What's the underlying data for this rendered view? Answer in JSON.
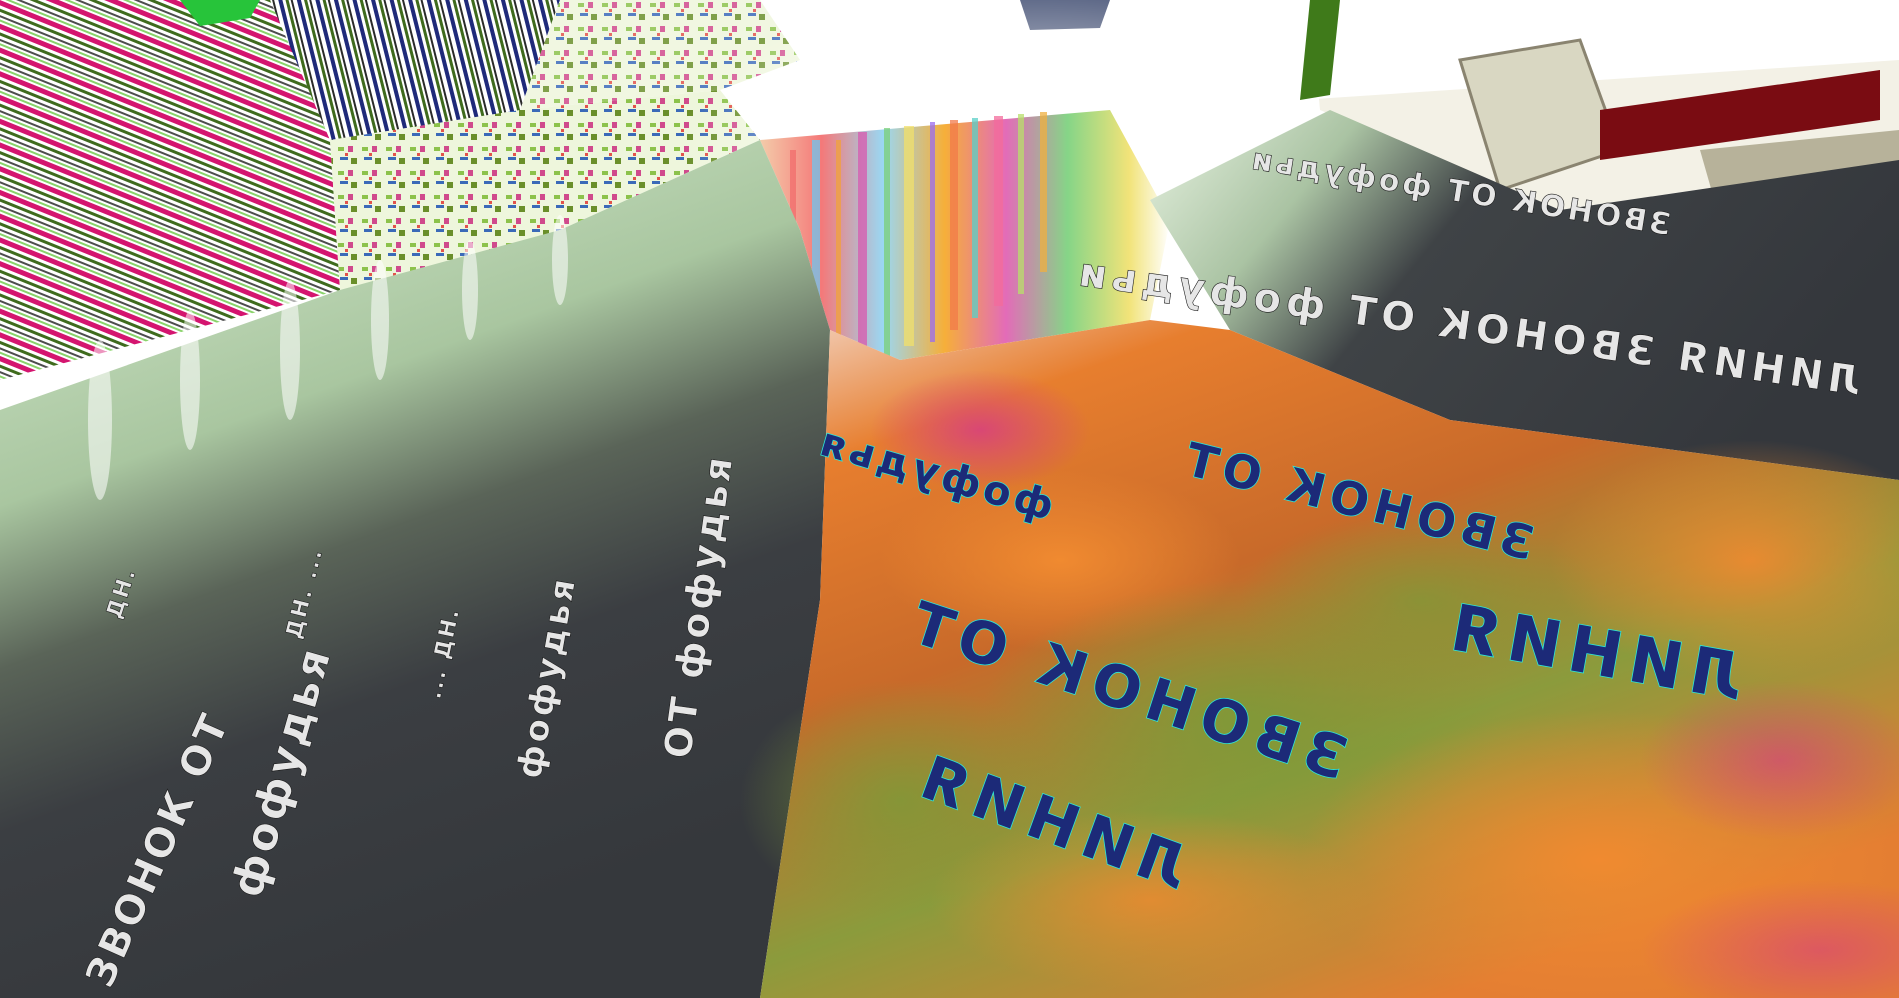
{
  "scene": {
    "palette": {
      "left_wall_light": "#cfe6c4",
      "left_wall_mid": "#9fbe95",
      "left_wall_dark": "#3b3e42",
      "right_wall_dark": "#3a3d44",
      "right_wall_light": "#cfe3c4",
      "floor_orange": "#e0792c",
      "floor_green": "#7f9a3a",
      "floor_pink": "#d7356f",
      "floor_teal": "#2bb5a3",
      "stripe_magenta": "#d4156f",
      "stripe_green": "#3f6b1d",
      "ceiling_white": "#ffffff"
    }
  }
}
